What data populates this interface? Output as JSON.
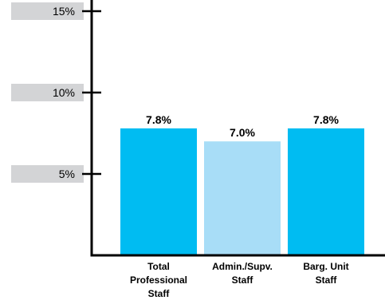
{
  "chart_data": {
    "type": "bar",
    "categories": [
      [
        "Total",
        "Professional",
        "Staff"
      ],
      [
        "Admin./Supv.",
        "Staff"
      ],
      [
        "Barg. Unit",
        "Staff"
      ]
    ],
    "values": [
      7.8,
      7.0,
      7.8
    ],
    "data_labels": [
      "7.8%",
      "7.0%",
      "7.8%"
    ],
    "bar_colors": [
      "#00BCF2",
      "#A8DDF7",
      "#00BCF2"
    ],
    "yticks": [
      {
        "value": 5,
        "label": "5%"
      },
      {
        "value": 10,
        "label": "10%"
      },
      {
        "value": 15,
        "label": "15%"
      }
    ],
    "tick_band_color": "#D3D4D6",
    "ylim": [
      0,
      17
    ],
    "title": "",
    "xlabel": "",
    "ylabel": "",
    "grid": false,
    "legend": "none"
  }
}
